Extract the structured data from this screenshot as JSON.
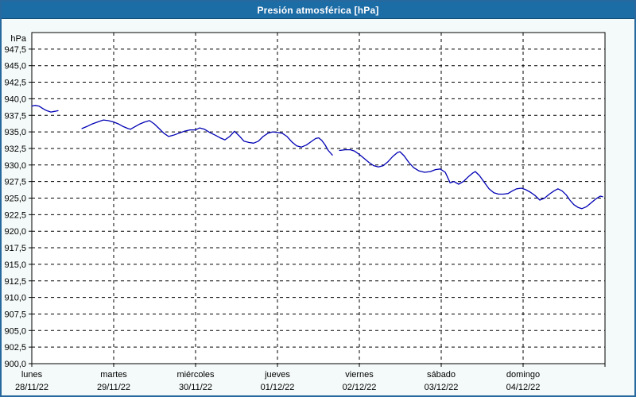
{
  "window": {
    "title": "Presión atmosférica [hPa]"
  },
  "colors": {
    "titlebar_bg": "#1c6ca6",
    "window_border": "#27699e",
    "background": "#f4faf9",
    "plot_bg": "#ffffff",
    "grid": "#000000",
    "line": "#0000b4"
  },
  "chart_data": {
    "type": "line",
    "title": "Presión atmosférica [hPa]",
    "ylabel": "hPa",
    "xlabel": "",
    "ylim": [
      900,
      950
    ],
    "xlim_hours": [
      0,
      168
    ],
    "grid": "dashed",
    "legend": "none",
    "y_ticks": [
      "947,5",
      "945,0",
      "942,5",
      "940,0",
      "937,5",
      "935,0",
      "932,5",
      "930,0",
      "927,5",
      "925,0",
      "922,5",
      "920,0",
      "917,5",
      "915,0",
      "912,5",
      "910,0",
      "907,5",
      "905,0",
      "902,5",
      "900,0"
    ],
    "days": [
      {
        "name": "lunes",
        "date": "28/11/22"
      },
      {
        "name": "martes",
        "date": "29/11/22"
      },
      {
        "name": "miércoles",
        "date": "30/11/22"
      },
      {
        "name": "jueves",
        "date": "01/12/22"
      },
      {
        "name": "viernes",
        "date": "02/12/22"
      },
      {
        "name": "sábado",
        "date": "03/12/22"
      },
      {
        "name": "domingo",
        "date": "04/12/22"
      }
    ],
    "series_name": "Presión atmosférica",
    "points": [
      [
        0.0,
        938.9
      ],
      [
        0.9,
        939.0
      ],
      [
        2.1,
        938.9
      ],
      [
        3.3,
        938.5
      ],
      [
        4.4,
        938.2
      ],
      [
        5.6,
        938.0
      ],
      [
        6.8,
        938.1
      ],
      [
        7.7,
        938.2
      ],
      null,
      [
        14.7,
        935.5
      ],
      [
        16.1,
        935.8
      ],
      [
        17.7,
        936.2
      ],
      [
        19.3,
        936.5
      ],
      [
        21.0,
        936.8
      ],
      [
        22.4,
        936.7
      ],
      [
        24.0,
        936.5
      ],
      [
        25.4,
        936.2
      ],
      [
        26.8,
        935.8
      ],
      [
        28.2,
        935.5
      ],
      [
        28.9,
        935.4
      ],
      [
        30.3,
        935.8
      ],
      [
        31.7,
        936.2
      ],
      [
        33.1,
        936.5
      ],
      [
        34.5,
        936.7
      ],
      [
        35.9,
        936.2
      ],
      [
        37.3,
        935.5
      ],
      [
        38.7,
        934.8
      ],
      [
        40.1,
        934.3
      ],
      [
        41.5,
        934.5
      ],
      [
        43.1,
        934.8
      ],
      [
        44.7,
        935.1
      ],
      [
        46.4,
        935.3
      ],
      [
        48.0,
        935.3
      ],
      [
        49.2,
        935.6
      ],
      [
        50.6,
        935.4
      ],
      [
        52.2,
        934.9
      ],
      [
        53.8,
        934.5
      ],
      [
        55.2,
        934.1
      ],
      [
        56.6,
        933.8
      ],
      [
        58.0,
        934.3
      ],
      [
        59.4,
        935.1
      ],
      [
        60.8,
        934.4
      ],
      [
        62.2,
        933.6
      ],
      [
        63.6,
        933.4
      ],
      [
        65.0,
        933.3
      ],
      [
        66.4,
        933.6
      ],
      [
        67.8,
        934.3
      ],
      [
        69.2,
        934.8
      ],
      [
        70.6,
        935.0
      ],
      [
        72.0,
        934.9
      ],
      [
        73.4,
        934.8
      ],
      [
        74.8,
        934.3
      ],
      [
        76.2,
        933.5
      ],
      [
        77.6,
        932.9
      ],
      [
        79.0,
        932.7
      ],
      [
        80.4,
        933.0
      ],
      [
        81.8,
        933.5
      ],
      [
        83.2,
        934.0
      ],
      [
        84.1,
        934.1
      ],
      [
        85.0,
        933.7
      ],
      [
        86.0,
        933.0
      ],
      [
        86.9,
        932.2
      ],
      [
        88.1,
        931.5
      ],
      null,
      [
        90.2,
        932.2
      ],
      [
        91.8,
        932.3
      ],
      [
        93.4,
        932.3
      ],
      [
        94.6,
        932.1
      ],
      [
        96.0,
        931.6
      ],
      [
        97.4,
        931.0
      ],
      [
        98.8,
        930.4
      ],
      [
        100.2,
        929.9
      ],
      [
        101.6,
        929.7
      ],
      [
        103.0,
        929.9
      ],
      [
        104.4,
        930.5
      ],
      [
        105.8,
        931.3
      ],
      [
        107.2,
        931.9
      ],
      [
        107.9,
        932.0
      ],
      [
        109.1,
        931.4
      ],
      [
        110.5,
        930.4
      ],
      [
        111.9,
        929.6
      ],
      [
        113.5,
        929.1
      ],
      [
        115.1,
        928.9
      ],
      [
        116.8,
        929.0
      ],
      [
        118.3,
        929.3
      ],
      [
        119.7,
        929.4
      ],
      [
        121.2,
        928.9
      ],
      [
        122.6,
        927.3
      ],
      [
        123.7,
        927.5
      ],
      [
        125.1,
        927.1
      ],
      [
        126.5,
        927.5
      ],
      [
        127.9,
        928.2
      ],
      [
        129.3,
        928.8
      ],
      [
        130.0,
        929.0
      ],
      [
        131.2,
        928.4
      ],
      [
        132.6,
        927.4
      ],
      [
        134.0,
        926.4
      ],
      [
        135.4,
        925.8
      ],
      [
        136.8,
        925.6
      ],
      [
        138.2,
        925.6
      ],
      [
        139.6,
        925.7
      ],
      [
        140.9,
        926.1
      ],
      [
        142.1,
        926.4
      ],
      [
        143.5,
        926.5
      ],
      [
        144.7,
        926.3
      ],
      [
        146.1,
        925.9
      ],
      [
        147.5,
        925.4
      ],
      [
        148.9,
        924.7
      ],
      [
        150.3,
        925.0
      ],
      [
        151.7,
        925.6
      ],
      [
        153.1,
        926.1
      ],
      [
        154.2,
        926.4
      ],
      [
        155.4,
        926.1
      ],
      [
        156.6,
        925.5
      ],
      [
        157.7,
        924.7
      ],
      [
        158.9,
        924.0
      ],
      [
        160.1,
        923.6
      ],
      [
        161.2,
        923.4
      ],
      [
        162.6,
        923.7
      ],
      [
        164.0,
        924.3
      ],
      [
        165.4,
        924.9
      ],
      [
        166.6,
        925.3
      ],
      [
        167.3,
        925.2
      ]
    ]
  }
}
